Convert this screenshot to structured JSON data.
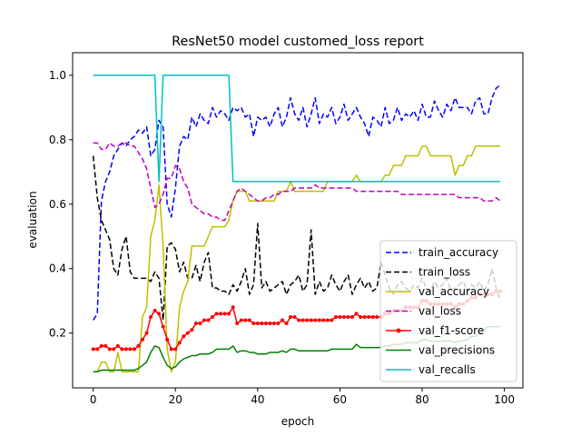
{
  "chart_data": {
    "type": "line",
    "title": "ResNet50 model customed_loss report",
    "xlabel": "epoch",
    "ylabel": "evaluation",
    "xlim": [
      -5,
      104.5
    ],
    "ylim": [
      0.03,
      1.07
    ],
    "xticks": [
      0,
      20,
      40,
      60,
      80,
      100
    ],
    "yticks": [
      0.2,
      0.4,
      0.6,
      0.8,
      1.0
    ],
    "xtick_labels": [
      "0",
      "20",
      "40",
      "60",
      "80",
      "100"
    ],
    "ytick_labels": [
      "0.2",
      "0.4",
      "0.6",
      "0.8",
      "1.0"
    ],
    "legend_position": "lower right",
    "grid": false,
    "x": [
      0,
      1,
      2,
      3,
      4,
      5,
      6,
      7,
      8,
      9,
      10,
      11,
      12,
      13,
      14,
      15,
      16,
      17,
      18,
      19,
      20,
      21,
      22,
      23,
      24,
      25,
      26,
      27,
      28,
      29,
      30,
      31,
      32,
      33,
      34,
      35,
      36,
      37,
      38,
      39,
      40,
      41,
      42,
      43,
      44,
      45,
      46,
      47,
      48,
      49,
      50,
      51,
      52,
      53,
      54,
      55,
      56,
      57,
      58,
      59,
      60,
      61,
      62,
      63,
      64,
      65,
      66,
      67,
      68,
      69,
      70,
      71,
      72,
      73,
      74,
      75,
      76,
      77,
      78,
      79,
      80,
      81,
      82,
      83,
      84,
      85,
      86,
      87,
      88,
      89,
      90,
      91,
      92,
      93,
      94,
      95,
      96,
      97,
      98,
      99
    ],
    "series": [
      {
        "name": "train_accuracy",
        "color": "#0000ff",
        "dash": "dashed",
        "marker": "none",
        "values": [
          0.24,
          0.26,
          0.61,
          0.67,
          0.7,
          0.75,
          0.77,
          0.79,
          0.78,
          0.8,
          0.81,
          0.83,
          0.82,
          0.84,
          0.75,
          0.77,
          0.86,
          0.84,
          0.6,
          0.56,
          0.65,
          0.78,
          0.81,
          0.8,
          0.87,
          0.84,
          0.88,
          0.86,
          0.85,
          0.9,
          0.87,
          0.89,
          0.88,
          0.86,
          0.9,
          0.89,
          0.9,
          0.87,
          0.88,
          0.81,
          0.87,
          0.86,
          0.87,
          0.84,
          0.88,
          0.9,
          0.84,
          0.87,
          0.93,
          0.88,
          0.86,
          0.9,
          0.84,
          0.88,
          0.93,
          0.85,
          0.88,
          0.87,
          0.9,
          0.85,
          0.87,
          0.91,
          0.86,
          0.88,
          0.9,
          0.87,
          0.85,
          0.81,
          0.87,
          0.86,
          0.84,
          0.9,
          0.85,
          0.86,
          0.9,
          0.86,
          0.88,
          0.87,
          0.89,
          0.86,
          0.91,
          0.87,
          0.87,
          0.92,
          0.89,
          0.87,
          0.91,
          0.89,
          0.93,
          0.9,
          0.9,
          0.9,
          0.88,
          0.92,
          0.93,
          0.88,
          0.88,
          0.93,
          0.96,
          0.97
        ]
      },
      {
        "name": "train_loss",
        "color": "#000000",
        "dash": "dashed",
        "marker": "none",
        "values": [
          0.75,
          0.62,
          0.55,
          0.52,
          0.49,
          0.4,
          0.38,
          0.46,
          0.5,
          0.39,
          0.37,
          0.37,
          0.37,
          0.37,
          0.36,
          0.39,
          0.37,
          0.24,
          0.47,
          0.48,
          0.46,
          0.39,
          0.42,
          0.37,
          0.37,
          0.41,
          0.36,
          0.42,
          0.45,
          0.34,
          0.34,
          0.33,
          0.33,
          0.32,
          0.35,
          0.33,
          0.36,
          0.4,
          0.32,
          0.35,
          0.54,
          0.34,
          0.36,
          0.33,
          0.34,
          0.35,
          0.36,
          0.32,
          0.35,
          0.36,
          0.38,
          0.33,
          0.35,
          0.52,
          0.32,
          0.36,
          0.33,
          0.34,
          0.38,
          0.35,
          0.33,
          0.36,
          0.38,
          0.32,
          0.35,
          0.37,
          0.34,
          0.36,
          0.33,
          0.34,
          0.42,
          0.38,
          0.34,
          0.32,
          0.35,
          0.36,
          0.34,
          0.33,
          0.35,
          0.34,
          0.37,
          0.34,
          0.33,
          0.36,
          0.34,
          0.35,
          0.37,
          0.33,
          0.34,
          0.35,
          0.36,
          0.33,
          0.35,
          0.34,
          0.36,
          0.33,
          0.35,
          0.4,
          0.34,
          0.3
        ]
      },
      {
        "name": "val_accuracy",
        "color": "#bfbf00",
        "dash": "solid",
        "marker": "none",
        "values": [
          0.08,
          0.08,
          0.11,
          0.11,
          0.08,
          0.08,
          0.14,
          0.08,
          0.08,
          0.08,
          0.08,
          0.08,
          0.25,
          0.28,
          0.5,
          0.55,
          0.66,
          0.47,
          0.15,
          0.08,
          0.11,
          0.28,
          0.33,
          0.36,
          0.47,
          0.47,
          0.47,
          0.47,
          0.5,
          0.53,
          0.53,
          0.53,
          0.53,
          0.55,
          0.61,
          0.64,
          0.64,
          0.64,
          0.61,
          0.61,
          0.61,
          0.61,
          0.61,
          0.61,
          0.61,
          0.64,
          0.64,
          0.64,
          0.67,
          0.64,
          0.64,
          0.64,
          0.64,
          0.64,
          0.64,
          0.64,
          0.64,
          0.67,
          0.67,
          0.67,
          0.67,
          0.67,
          0.67,
          0.67,
          0.69,
          0.67,
          0.67,
          0.67,
          0.67,
          0.67,
          0.67,
          0.69,
          0.69,
          0.72,
          0.72,
          0.72,
          0.75,
          0.75,
          0.75,
          0.75,
          0.78,
          0.78,
          0.75,
          0.75,
          0.75,
          0.75,
          0.75,
          0.75,
          0.69,
          0.72,
          0.72,
          0.75,
          0.75,
          0.78,
          0.78,
          0.78,
          0.78,
          0.78,
          0.78,
          0.78
        ]
      },
      {
        "name": "val_loss",
        "color": "#bf00bf",
        "dash": "dashed",
        "marker": "none",
        "values": [
          0.79,
          0.79,
          0.77,
          0.77,
          0.79,
          0.78,
          0.78,
          0.79,
          0.79,
          0.78,
          0.78,
          0.76,
          0.74,
          0.71,
          0.65,
          0.59,
          0.6,
          0.63,
          0.68,
          0.68,
          0.72,
          0.71,
          0.67,
          0.65,
          0.6,
          0.59,
          0.58,
          0.57,
          0.57,
          0.56,
          0.56,
          0.55,
          0.55,
          0.58,
          0.61,
          0.64,
          0.65,
          0.64,
          0.63,
          0.62,
          0.61,
          0.61,
          0.62,
          0.62,
          0.63,
          0.63,
          0.64,
          0.64,
          0.64,
          0.65,
          0.65,
          0.65,
          0.65,
          0.65,
          0.66,
          0.65,
          0.65,
          0.65,
          0.65,
          0.65,
          0.65,
          0.65,
          0.65,
          0.65,
          0.64,
          0.64,
          0.64,
          0.64,
          0.64,
          0.64,
          0.64,
          0.64,
          0.64,
          0.64,
          0.64,
          0.63,
          0.63,
          0.63,
          0.63,
          0.63,
          0.63,
          0.63,
          0.63,
          0.63,
          0.63,
          0.63,
          0.63,
          0.63,
          0.63,
          0.62,
          0.62,
          0.62,
          0.62,
          0.62,
          0.62,
          0.61,
          0.61,
          0.61,
          0.62,
          0.61
        ]
      },
      {
        "name": "val_f1-score",
        "color": "#ff0000",
        "dash": "solid",
        "marker": "dot",
        "values": [
          0.15,
          0.15,
          0.16,
          0.16,
          0.15,
          0.15,
          0.16,
          0.15,
          0.15,
          0.15,
          0.15,
          0.16,
          0.18,
          0.2,
          0.25,
          0.27,
          0.26,
          0.22,
          0.18,
          0.15,
          0.15,
          0.17,
          0.19,
          0.2,
          0.21,
          0.23,
          0.23,
          0.24,
          0.24,
          0.25,
          0.26,
          0.26,
          0.26,
          0.26,
          0.28,
          0.23,
          0.24,
          0.24,
          0.24,
          0.23,
          0.23,
          0.23,
          0.23,
          0.23,
          0.23,
          0.23,
          0.24,
          0.23,
          0.25,
          0.25,
          0.24,
          0.24,
          0.24,
          0.24,
          0.24,
          0.24,
          0.24,
          0.24,
          0.24,
          0.25,
          0.25,
          0.25,
          0.25,
          0.25,
          0.26,
          0.25,
          0.25,
          0.25,
          0.25,
          0.25,
          0.25,
          0.26,
          0.26,
          0.27,
          0.27,
          0.27,
          0.28,
          0.28,
          0.28,
          0.28,
          0.3,
          0.3,
          0.29,
          0.29,
          0.29,
          0.29,
          0.29,
          0.29,
          0.28,
          0.29,
          0.29,
          0.3,
          0.31,
          0.31,
          0.32,
          0.32,
          0.32,
          0.32,
          0.33,
          0.33
        ]
      },
      {
        "name": "val_precisions",
        "color": "#008000",
        "dash": "solid",
        "marker": "none",
        "values": [
          0.08,
          0.08,
          0.085,
          0.085,
          0.085,
          0.085,
          0.085,
          0.085,
          0.085,
          0.085,
          0.085,
          0.09,
          0.1,
          0.11,
          0.14,
          0.16,
          0.155,
          0.125,
          0.1,
          0.09,
          0.095,
          0.11,
          0.12,
          0.125,
          0.13,
          0.13,
          0.135,
          0.135,
          0.135,
          0.14,
          0.15,
          0.15,
          0.15,
          0.15,
          0.16,
          0.14,
          0.145,
          0.145,
          0.14,
          0.14,
          0.135,
          0.135,
          0.135,
          0.14,
          0.14,
          0.14,
          0.145,
          0.14,
          0.15,
          0.15,
          0.145,
          0.145,
          0.145,
          0.145,
          0.145,
          0.145,
          0.145,
          0.145,
          0.15,
          0.15,
          0.15,
          0.15,
          0.15,
          0.15,
          0.165,
          0.155,
          0.155,
          0.155,
          0.155,
          0.155,
          0.155,
          0.16,
          0.16,
          0.165,
          0.165,
          0.165,
          0.17,
          0.17,
          0.17,
          0.17,
          0.18,
          0.18,
          0.175,
          0.175,
          0.175,
          0.175,
          0.175,
          0.175,
          0.17,
          0.175,
          0.175,
          0.18,
          0.19,
          0.19,
          0.2,
          0.21,
          0.22,
          0.22,
          0.22,
          0.22
        ]
      },
      {
        "name": "val_recalls",
        "color": "#00bfbf",
        "dash": "solid",
        "marker": "none",
        "values": [
          1.0,
          1.0,
          1.0,
          1.0,
          1.0,
          1.0,
          1.0,
          1.0,
          1.0,
          1.0,
          1.0,
          1.0,
          1.0,
          1.0,
          1.0,
          1.0,
          0.67,
          1.0,
          1.0,
          1.0,
          1.0,
          1.0,
          1.0,
          1.0,
          1.0,
          1.0,
          1.0,
          1.0,
          1.0,
          1.0,
          1.0,
          1.0,
          1.0,
          1.0,
          0.67,
          0.67,
          0.67,
          0.67,
          0.67,
          0.67,
          0.67,
          0.67,
          0.67,
          0.67,
          0.67,
          0.67,
          0.67,
          0.67,
          0.67,
          0.67,
          0.67,
          0.67,
          0.67,
          0.67,
          0.67,
          0.67,
          0.67,
          0.67,
          0.67,
          0.67,
          0.67,
          0.67,
          0.67,
          0.67,
          0.67,
          0.67,
          0.67,
          0.67,
          0.67,
          0.67,
          0.67,
          0.67,
          0.67,
          0.67,
          0.67,
          0.67,
          0.67,
          0.67,
          0.67,
          0.67,
          0.67,
          0.67,
          0.67,
          0.67,
          0.67,
          0.67,
          0.67,
          0.67,
          0.67,
          0.67,
          0.67,
          0.67,
          0.67,
          0.67,
          0.67,
          0.67,
          0.67,
          0.67,
          0.67,
          0.67
        ]
      }
    ]
  }
}
